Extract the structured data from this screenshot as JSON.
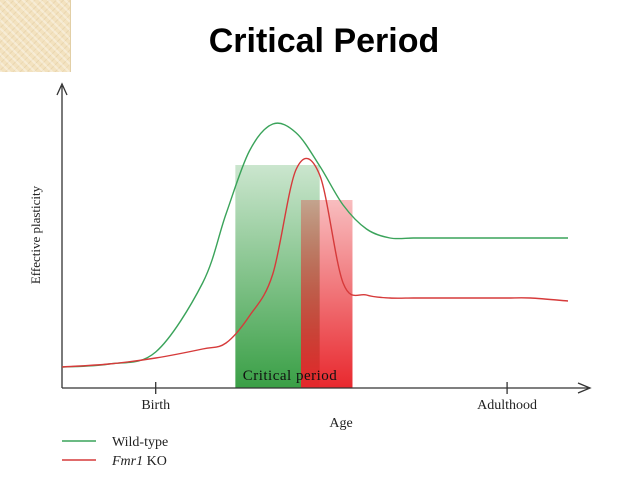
{
  "slide": {
    "title": "Critical Period"
  },
  "chart_data": {
    "type": "line",
    "title": "",
    "xlabel": "Age",
    "ylabel": "Effective plasticity",
    "x_ticks": [
      "Birth",
      "Adulthood"
    ],
    "x_tick_positions": [
      0.2,
      0.95
    ],
    "xlim": [
      0,
      1.08
    ],
    "ylim": [
      0,
      1.0
    ],
    "grid": false,
    "legend_placement": "bottom-left",
    "x": [
      0,
      0.1,
      0.2,
      0.3,
      0.35,
      0.4,
      0.45,
      0.5,
      0.55,
      0.6,
      0.65,
      0.7,
      0.75,
      0.8,
      0.85,
      0.9,
      0.95,
      1.0,
      1.08
    ],
    "series": [
      {
        "name": "Wild-type",
        "color": "#3aa35a",
        "values": [
          0.07,
          0.08,
          0.12,
          0.35,
          0.58,
          0.79,
          0.88,
          0.85,
          0.74,
          0.61,
          0.53,
          0.5,
          0.5,
          0.5,
          0.5,
          0.5,
          0.5,
          0.5,
          0.5
        ]
      },
      {
        "name": "Fmr1 KO",
        "color": "#d63a3a",
        "values": [
          0.07,
          0.08,
          0.1,
          0.13,
          0.15,
          0.24,
          0.38,
          0.73,
          0.71,
          0.35,
          0.31,
          0.3,
          0.3,
          0.3,
          0.3,
          0.3,
          0.3,
          0.3,
          0.29
        ]
      }
    ],
    "bands": [
      {
        "label": "Critical period",
        "color": "#2f9a3c",
        "x0": 0.37,
        "x1": 0.55
      },
      {
        "label": "",
        "color": "#e8242a",
        "x0": 0.51,
        "x1": 0.62
      }
    ],
    "band_label": "Critical period",
    "legend": [
      {
        "label_prefix": "Wild-type",
        "label_italic": "",
        "label_suffix": "",
        "color": "#3aa35a"
      },
      {
        "label_prefix": "",
        "label_italic": "Fmr1",
        "label_suffix": " KO",
        "color": "#d63a3a"
      }
    ]
  }
}
